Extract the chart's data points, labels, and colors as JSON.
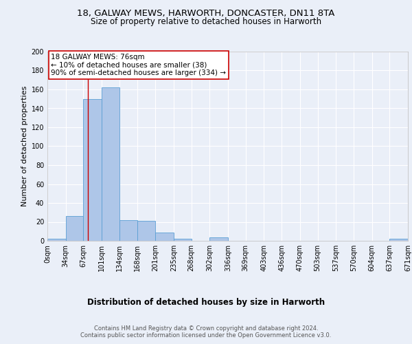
{
  "title1": "18, GALWAY MEWS, HARWORTH, DONCASTER, DN11 8TA",
  "title2": "Size of property relative to detached houses in Harworth",
  "xlabel": "Distribution of detached houses by size in Harworth",
  "ylabel": "Number of detached properties",
  "bin_edges": [
    0,
    34,
    67,
    101,
    134,
    168,
    201,
    235,
    268,
    302,
    336,
    369,
    403,
    436,
    470,
    503,
    537,
    570,
    604,
    637,
    671
  ],
  "bar_heights": [
    2,
    26,
    150,
    162,
    22,
    21,
    9,
    2,
    0,
    4,
    0,
    0,
    0,
    0,
    0,
    0,
    0,
    0,
    0,
    2
  ],
  "bar_color": "#aec6e8",
  "bar_edge_color": "#5a9fd4",
  "property_line_x": 76,
  "property_line_color": "#cc0000",
  "annotation_text": "18 GALWAY MEWS: 76sqm\n← 10% of detached houses are smaller (38)\n90% of semi-detached houses are larger (334) →",
  "annotation_box_color": "#ffffff",
  "annotation_box_edge_color": "#cc0000",
  "ylim": [
    0,
    200
  ],
  "yticks": [
    0,
    20,
    40,
    60,
    80,
    100,
    120,
    140,
    160,
    180,
    200
  ],
  "bg_color": "#eaeff8",
  "plot_bg_color": "#eaeff8",
  "footer_text": "Contains HM Land Registry data © Crown copyright and database right 2024.\nContains public sector information licensed under the Open Government Licence v3.0.",
  "title1_fontsize": 9.5,
  "title2_fontsize": 8.5,
  "xlabel_fontsize": 8.5,
  "ylabel_fontsize": 8,
  "tick_label_fontsize": 7,
  "annotation_fontsize": 7.5,
  "footer_fontsize": 6
}
